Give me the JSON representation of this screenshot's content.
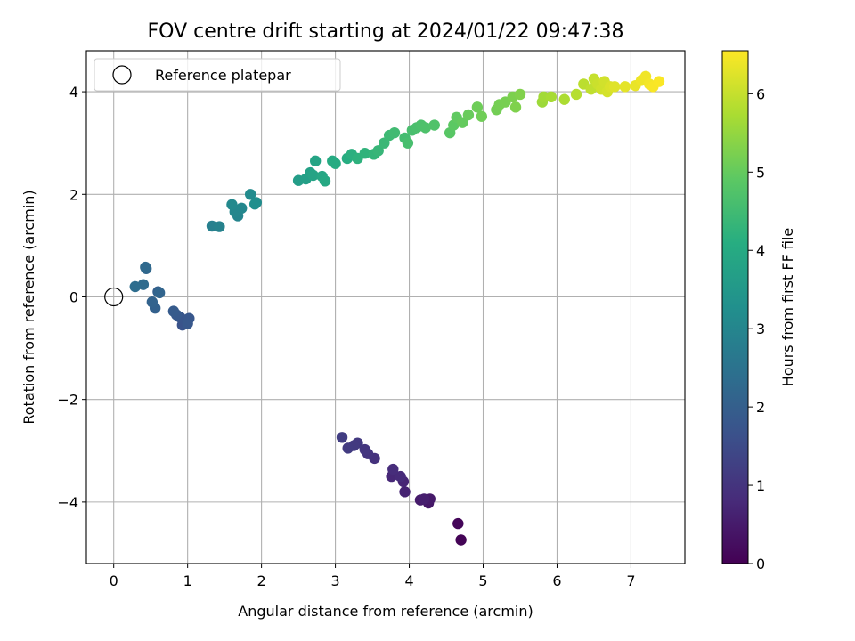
{
  "chart_data": {
    "type": "scatter",
    "title": "FOV centre drift starting at 2024/01/22 09:47:38",
    "xlabel": "Angular distance from reference (arcmin)",
    "ylabel": "Rotation from reference (arcmin)",
    "xlim": [
      -0.37,
      7.73
    ],
    "ylim": [
      -5.2,
      4.8
    ],
    "xticks": [
      "0",
      "1",
      "2",
      "3",
      "4",
      "5",
      "6",
      "7"
    ],
    "yticks": [
      "−4",
      "−2",
      "0",
      "2",
      "4"
    ],
    "grid": true,
    "legend": {
      "position": "top-left",
      "entries": [
        "Reference platepar"
      ]
    },
    "reference_point": {
      "x": 0,
      "y": 0
    },
    "colorbar": {
      "label": "Hours from first FF file",
      "range": [
        0,
        6.55
      ],
      "ticks": [
        "0",
        "1",
        "2",
        "3",
        "4",
        "5",
        "6"
      ],
      "colormap": "viridis"
    },
    "series": [
      {
        "x": [
          4.7,
          4.66,
          4.26,
          4.28,
          4.15,
          4.2,
          3.94,
          3.92,
          3.76,
          3.88,
          3.78,
          3.53,
          3.44,
          3.4,
          3.3,
          3.25,
          3.17,
          3.09,
          0.95,
          0.93,
          0.9,
          1.02,
          1.0,
          0.85,
          0.81,
          0.6,
          0.56,
          0.52,
          0.62,
          0.44,
          0.43,
          0.4,
          0.29,
          1.33,
          1.43,
          1.68,
          1.64,
          1.73,
          1.6,
          1.85,
          1.93,
          1.91,
          2.5,
          2.6,
          2.66,
          2.7,
          2.73,
          2.82,
          2.86,
          2.96,
          3.0,
          3.16,
          3.22,
          3.3,
          3.4,
          3.52,
          3.58,
          3.66,
          3.73,
          3.8,
          3.94,
          3.98,
          4.04,
          4.1,
          4.16,
          4.22,
          4.34,
          4.55,
          4.6,
          4.64,
          4.72,
          4.8,
          4.92,
          4.98,
          5.18,
          5.22,
          5.3,
          5.4,
          5.5,
          5.44,
          5.8,
          5.82,
          5.92,
          6.1,
          6.26,
          6.36,
          6.46,
          6.5,
          6.55,
          6.6,
          6.64,
          6.68,
          6.72,
          6.78,
          6.92,
          7.06,
          7.14,
          7.2,
          7.25,
          7.3,
          7.38
        ],
        "y": [
          -4.74,
          -4.42,
          -4.02,
          -3.94,
          -3.96,
          -3.94,
          -3.8,
          -3.6,
          -3.5,
          -3.5,
          -3.36,
          -3.15,
          -3.06,
          -2.98,
          -2.85,
          -2.9,
          -2.95,
          -2.74,
          -0.52,
          -0.55,
          -0.4,
          -0.42,
          -0.52,
          -0.35,
          -0.28,
          0.1,
          -0.22,
          -0.1,
          0.08,
          0.55,
          0.58,
          0.24,
          0.2,
          1.38,
          1.37,
          1.58,
          1.66,
          1.73,
          1.8,
          2.0,
          1.84,
          1.81,
          2.27,
          2.3,
          2.42,
          2.37,
          2.65,
          2.35,
          2.26,
          2.65,
          2.6,
          2.7,
          2.78,
          2.7,
          2.8,
          2.78,
          2.85,
          3.0,
          3.15,
          3.2,
          3.1,
          3.0,
          3.25,
          3.3,
          3.35,
          3.3,
          3.35,
          3.2,
          3.35,
          3.5,
          3.4,
          3.55,
          3.7,
          3.52,
          3.65,
          3.75,
          3.8,
          3.9,
          3.95,
          3.7,
          3.8,
          3.9,
          3.9,
          3.85,
          3.95,
          4.15,
          4.05,
          4.25,
          4.15,
          4.05,
          4.2,
          4.0,
          4.1,
          4.1,
          4.1,
          4.12,
          4.22,
          4.3,
          4.15,
          4.1,
          4.2
        ],
        "c": [
          0.05,
          0.1,
          0.4,
          0.45,
          0.5,
          0.55,
          0.65,
          0.7,
          0.75,
          0.8,
          0.85,
          0.95,
          1.0,
          1.05,
          1.1,
          1.12,
          1.15,
          1.2,
          1.65,
          1.7,
          1.75,
          1.8,
          1.82,
          1.85,
          1.9,
          2.0,
          2.05,
          2.1,
          2.15,
          2.2,
          2.25,
          2.3,
          2.35,
          2.85,
          2.9,
          2.95,
          3.0,
          3.05,
          3.1,
          3.15,
          3.2,
          3.25,
          3.65,
          3.7,
          3.75,
          3.8,
          3.85,
          3.9,
          3.95,
          4.0,
          4.05,
          4.1,
          4.15,
          4.2,
          4.25,
          4.3,
          4.35,
          4.4,
          4.45,
          4.5,
          4.55,
          4.6,
          4.62,
          4.65,
          4.68,
          4.7,
          4.72,
          4.85,
          4.9,
          4.95,
          5.0,
          5.05,
          5.1,
          5.12,
          5.15,
          5.18,
          5.2,
          5.25,
          5.3,
          5.28,
          5.6,
          5.65,
          5.7,
          5.75,
          5.85,
          5.9,
          5.95,
          6.0,
          6.05,
          6.1,
          6.12,
          6.15,
          6.2,
          6.25,
          6.3,
          6.35,
          6.4,
          6.42,
          6.45,
          6.5,
          6.52
        ]
      }
    ]
  }
}
